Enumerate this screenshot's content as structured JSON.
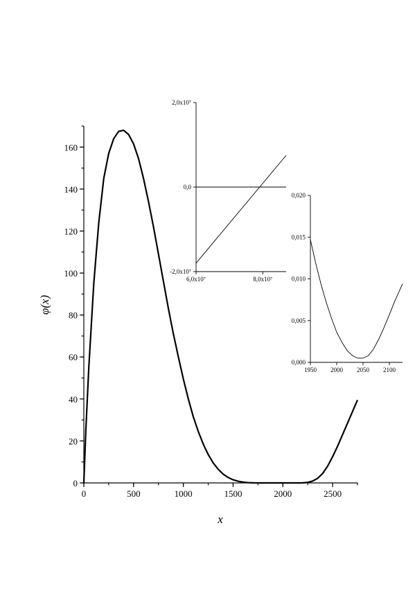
{
  "chart_data": [
    {
      "type": "line",
      "title": "",
      "xlabel": "x",
      "ylabel": "φ(x)",
      "xlim": [
        0,
        2750
      ],
      "ylim": [
        0,
        170
      ],
      "grid": false,
      "x_ticks": [
        0,
        500,
        1000,
        1500,
        2000,
        2500
      ],
      "x_tick_labels": [
        "0",
        "500",
        "1000",
        "1500",
        "2000",
        "2500"
      ],
      "y_ticks": [
        0,
        20,
        40,
        60,
        80,
        100,
        120,
        140,
        160
      ],
      "y_tick_labels": [
        "0",
        "20",
        "40",
        "60",
        "80",
        "100",
        "120",
        "140",
        "160"
      ],
      "series": [
        {
          "x": [
            0,
            20,
            50,
            100,
            150,
            200,
            250,
            300,
            350,
            400,
            450,
            500,
            550,
            600,
            650,
            700,
            750,
            800,
            850,
            900,
            950,
            1000,
            1050,
            1100,
            1150,
            1200,
            1250,
            1300,
            1350,
            1400,
            1450,
            1500,
            1550,
            1600,
            1650,
            1700,
            1750,
            1800,
            1850,
            1900,
            1950,
            2000,
            2050,
            2100,
            2150,
            2200,
            2250,
            2300,
            2350,
            2400,
            2450,
            2500,
            2550,
            2600,
            2650,
            2700,
            2750
          ],
          "y": [
            0,
            25,
            55,
            95,
            124,
            145,
            157,
            164,
            167.5,
            168,
            166,
            161.5,
            154.5,
            145,
            134,
            122,
            109,
            96,
            83,
            71,
            60,
            49.5,
            40,
            31.5,
            24.5,
            18.5,
            13.5,
            9.5,
            6.5,
            4.2,
            2.6,
            1.5,
            0.8,
            0.4,
            0.15,
            0.05,
            0.02,
            0.01,
            0.005,
            0.003,
            0.002,
            0.001,
            0.001,
            0.002,
            0.01,
            0.05,
            0.25,
            0.9,
            2.2,
            4.5,
            8,
            12.5,
            17.5,
            23,
            28.5,
            34,
            39.5
          ]
        }
      ]
    },
    {
      "type": "line",
      "title": "",
      "xlabel": "",
      "ylabel": "",
      "xlim": [
        60000000,
        87000000
      ],
      "ylim": [
        -20000000,
        20000000
      ],
      "grid": false,
      "x_tick_labels": [
        "6,0x10⁷",
        "8,0x10⁷"
      ],
      "x_ticks": [
        60000000,
        80000000
      ],
      "y_tick_labels": [
        "2,0x10⁷",
        "0,0",
        "-2,0x10⁷"
      ],
      "y_ticks": [
        20000000,
        0,
        -20000000
      ],
      "reference_lines": [
        {
          "y": 0
        }
      ],
      "series": [
        {
          "x": [
            60000000,
            87000000
          ],
          "y": [
            -18000000,
            7500000
          ]
        }
      ]
    },
    {
      "type": "line",
      "title": "",
      "xlabel": "",
      "ylabel": "",
      "xlim": [
        1950,
        2125
      ],
      "ylim": [
        0,
        0.02
      ],
      "grid": false,
      "x_ticks": [
        1950,
        2000,
        2050,
        2100
      ],
      "x_tick_labels": [
        "1950",
        "2000",
        "2050",
        "2100"
      ],
      "y_ticks": [
        0,
        0.005,
        0.01,
        0.015,
        0.02
      ],
      "y_tick_labels": [
        "0,000",
        "0,005",
        "0,010",
        "0,015",
        "0,020"
      ],
      "series": [
        {
          "x": [
            1950,
            1960,
            1970,
            1980,
            1990,
            2000,
            2010,
            2020,
            2030,
            2040,
            2050,
            2060,
            2070,
            2080,
            2090,
            2100,
            2110,
            2125
          ],
          "y": [
            0.0147,
            0.0119,
            0.0094,
            0.0072,
            0.0053,
            0.0036,
            0.0024,
            0.0014,
            0.0008,
            0.0005,
            0.0005,
            0.0008,
            0.0016,
            0.0028,
            0.0042,
            0.0057,
            0.0073,
            0.0094
          ]
        }
      ]
    }
  ]
}
